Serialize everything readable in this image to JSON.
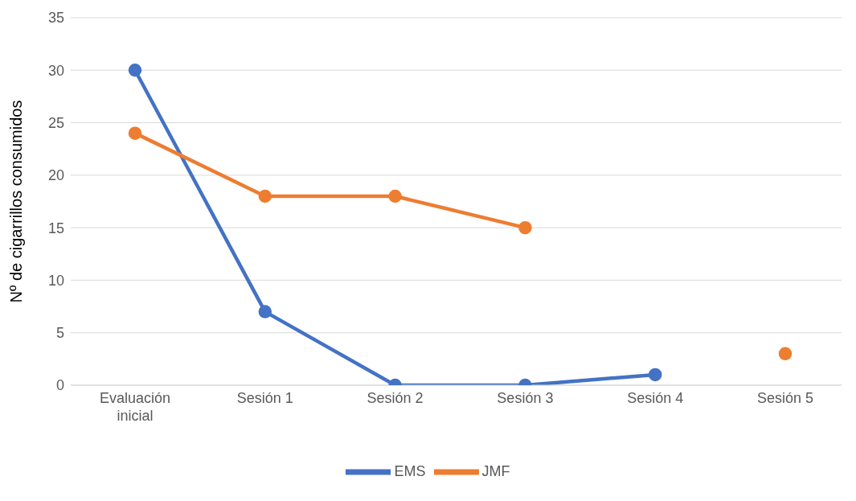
{
  "chart_data": {
    "type": "line",
    "ylabel": "Nº de cigarrillos consumidos",
    "categories": [
      "Evaluación inicial",
      "Sesión 1",
      "Sesión 2",
      "Sesión 3",
      "Sesión 4",
      "Sesión 5"
    ],
    "series": [
      {
        "name": "EMS",
        "color": "#4472c4",
        "values": [
          30,
          7,
          0,
          0,
          1,
          null
        ]
      },
      {
        "name": "JMF",
        "color": "#ed7d31",
        "values": [
          24,
          18,
          18,
          15,
          null,
          3
        ]
      }
    ],
    "ylim": [
      0,
      35
    ],
    "yticks": [
      0,
      5,
      10,
      15,
      20,
      25,
      30,
      35
    ],
    "grid": "y",
    "legend": "bottom",
    "marker": "circle",
    "line_style": "solid"
  }
}
